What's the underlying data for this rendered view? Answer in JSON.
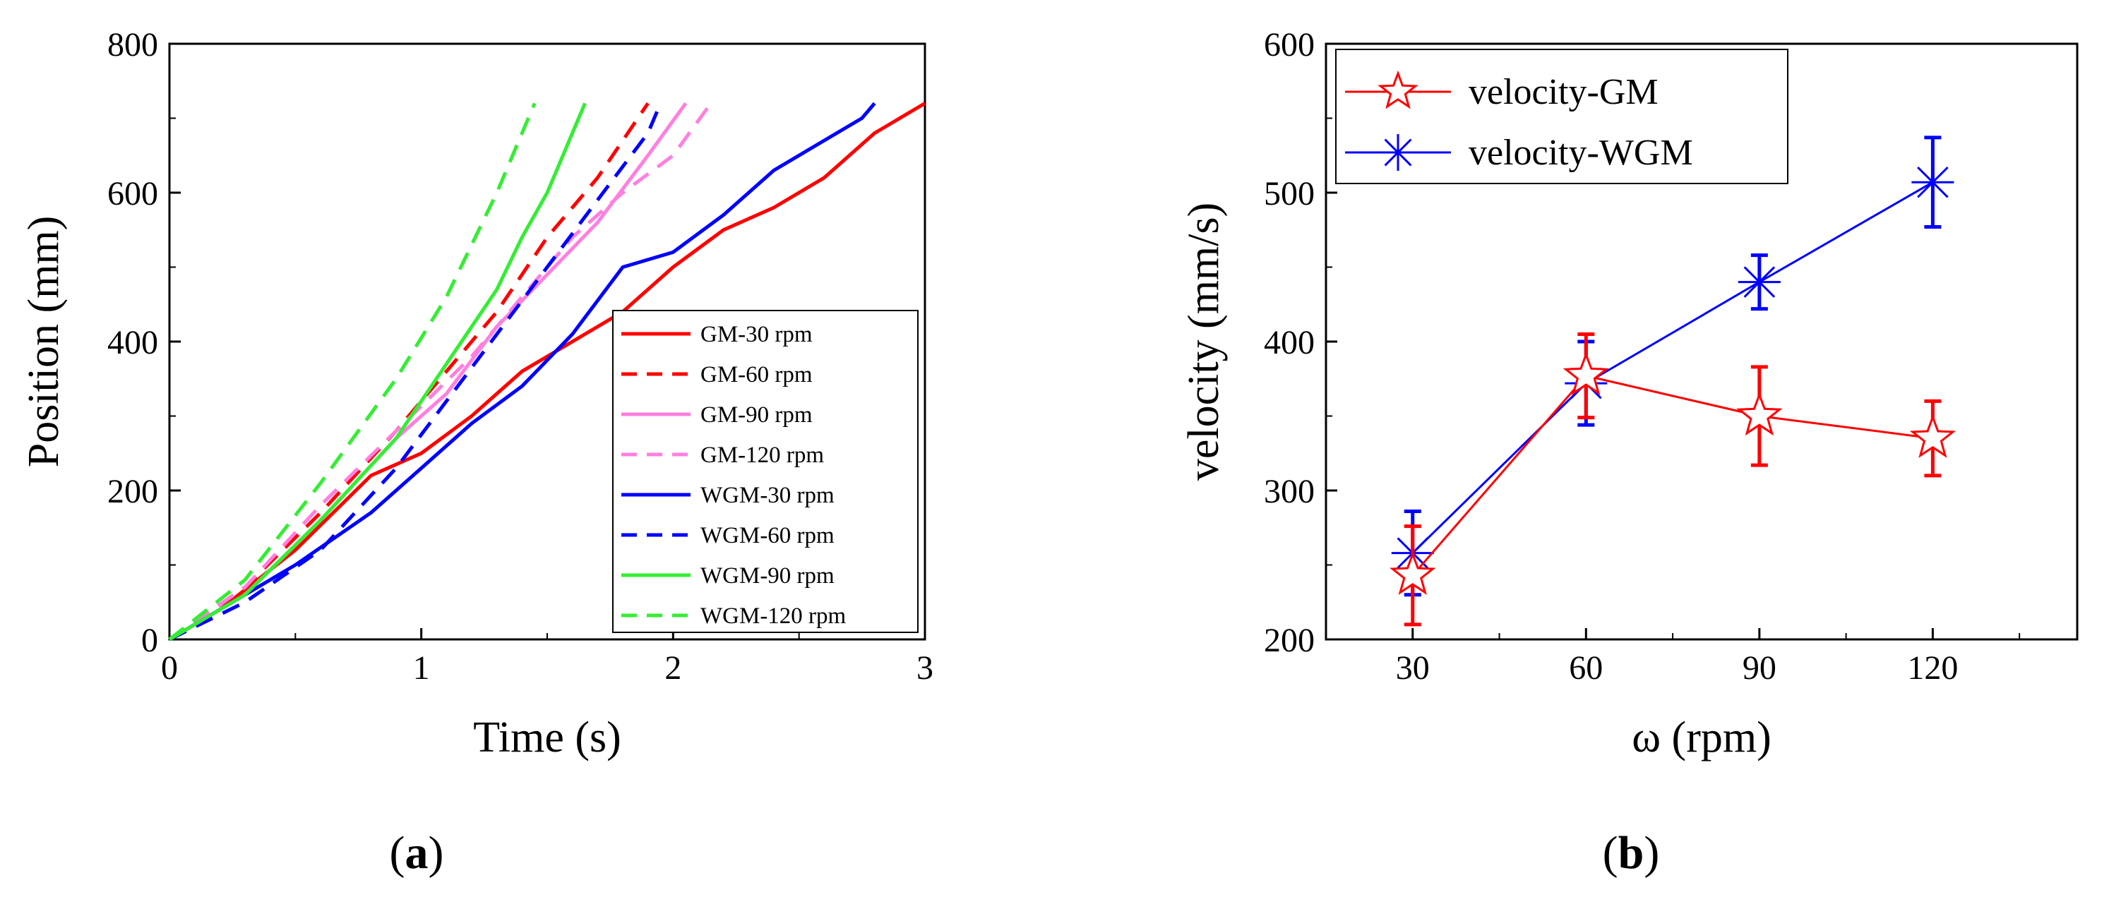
{
  "chart_data": [
    {
      "type": "line",
      "panel_label": "a",
      "xlabel": "Time (s)",
      "ylabel": "Position (mm)",
      "xlim": [
        0,
        3
      ],
      "ylim": [
        0,
        800
      ],
      "xticks": [
        "0",
        "1",
        "2",
        "3"
      ],
      "yticks": [
        "0",
        "200",
        "400",
        "600",
        "800"
      ],
      "legend_position": "bottom-right",
      "series": [
        {
          "name": "GM-30 rpm",
          "color": "#ff0000",
          "dash": "solid",
          "points": [
            [
              0,
              0
            ],
            [
              0.2,
              40
            ],
            [
              0.5,
              120
            ],
            [
              0.8,
              220
            ],
            [
              1.0,
              250
            ],
            [
              1.2,
              300
            ],
            [
              1.4,
              360
            ],
            [
              1.6,
              400
            ],
            [
              1.8,
              440
            ],
            [
              2.0,
              500
            ],
            [
              2.2,
              550
            ],
            [
              2.4,
              580
            ],
            [
              2.6,
              620
            ],
            [
              2.8,
              680
            ],
            [
              3.0,
              720
            ]
          ]
        },
        {
          "name": "GM-60 rpm",
          "color": "#ff0000",
          "dash": "dashed",
          "points": [
            [
              0,
              0
            ],
            [
              0.3,
              70
            ],
            [
              0.6,
              170
            ],
            [
              0.9,
              280
            ],
            [
              1.1,
              360
            ],
            [
              1.3,
              440
            ],
            [
              1.5,
              540
            ],
            [
              1.7,
              620
            ],
            [
              1.9,
              720
            ]
          ]
        },
        {
          "name": "GM-90 rpm",
          "color": "#ff7fe0",
          "dash": "solid",
          "points": [
            [
              0,
              0
            ],
            [
              0.3,
              60
            ],
            [
              0.6,
              160
            ],
            [
              0.9,
              270
            ],
            [
              1.1,
              330
            ],
            [
              1.3,
              420
            ],
            [
              1.5,
              490
            ],
            [
              1.7,
              560
            ],
            [
              1.9,
              650
            ],
            [
              2.05,
              720
            ]
          ]
        },
        {
          "name": "GM-120 rpm",
          "color": "#ff7fe0",
          "dash": "dashed",
          "points": [
            [
              0,
              0
            ],
            [
              0.3,
              70
            ],
            [
              0.6,
              180
            ],
            [
              0.9,
              280
            ],
            [
              1.2,
              380
            ],
            [
              1.4,
              460
            ],
            [
              1.6,
              540
            ],
            [
              1.8,
              600
            ],
            [
              2.0,
              650
            ],
            [
              2.15,
              720
            ]
          ]
        },
        {
          "name": "WGM-30 rpm",
          "color": "#0000ff",
          "dash": "solid",
          "points": [
            [
              0,
              0
            ],
            [
              0.2,
              40
            ],
            [
              0.5,
              100
            ],
            [
              0.8,
              170
            ],
            [
              1.0,
              230
            ],
            [
              1.2,
              290
            ],
            [
              1.4,
              340
            ],
            [
              1.6,
              410
            ],
            [
              1.8,
              500
            ],
            [
              2.0,
              520
            ],
            [
              2.2,
              570
            ],
            [
              2.4,
              630
            ],
            [
              2.6,
              670
            ],
            [
              2.75,
              700
            ],
            [
              2.8,
              720
            ]
          ]
        },
        {
          "name": "WGM-60 rpm",
          "color": "#0000ff",
          "dash": "dashed",
          "points": [
            [
              0,
              0
            ],
            [
              0.3,
              50
            ],
            [
              0.6,
              120
            ],
            [
              0.9,
              230
            ],
            [
              1.1,
              320
            ],
            [
              1.3,
              410
            ],
            [
              1.5,
              500
            ],
            [
              1.7,
              590
            ],
            [
              1.9,
              680
            ],
            [
              1.95,
              720
            ]
          ]
        },
        {
          "name": "WGM-90 rpm",
          "color": "#33ee33",
          "dash": "solid",
          "points": [
            [
              0,
              0
            ],
            [
              0.3,
              60
            ],
            [
              0.6,
              160
            ],
            [
              0.9,
              270
            ],
            [
              1.1,
              370
            ],
            [
              1.3,
              470
            ],
            [
              1.4,
              540
            ],
            [
              1.5,
              600
            ],
            [
              1.65,
              720
            ]
          ]
        },
        {
          "name": "WGM-120 rpm",
          "color": "#33ee33",
          "dash": "dashed",
          "points": [
            [
              0,
              0
            ],
            [
              0.3,
              80
            ],
            [
              0.6,
              210
            ],
            [
              0.9,
              350
            ],
            [
              1.1,
              460
            ],
            [
              1.3,
              600
            ],
            [
              1.45,
              720
            ]
          ]
        }
      ]
    },
    {
      "type": "line",
      "panel_label": "b",
      "xlabel": "ω (rpm)",
      "ylabel": "velocity (mm/s)",
      "xlim": [
        15,
        145
      ],
      "ylim": [
        200,
        600
      ],
      "categories": [
        "30",
        "60",
        "90",
        "120"
      ],
      "xticks": [
        "30",
        "60",
        "90",
        "120"
      ],
      "yticks": [
        "200",
        "300",
        "400",
        "500",
        "600"
      ],
      "legend_position": "top-left",
      "series": [
        {
          "name": "velocity-GM",
          "color": "#ff0000",
          "marker": "star",
          "x": [
            30,
            60,
            90,
            120
          ],
          "values": [
            243,
            377,
            350,
            335
          ],
          "errors": [
            33,
            28,
            33,
            25
          ]
        },
        {
          "name": "velocity-WGM",
          "color": "#0000ff",
          "marker": "asterisk",
          "x": [
            30,
            60,
            90,
            120
          ],
          "values": [
            258,
            372,
            440,
            507
          ],
          "errors": [
            28,
            28,
            18,
            30
          ]
        }
      ]
    }
  ]
}
